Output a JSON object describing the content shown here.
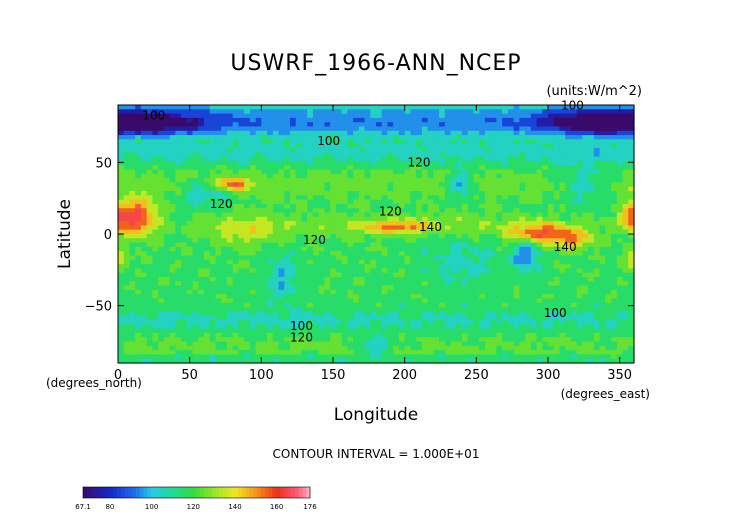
{
  "chart_data": {
    "type": "heatmap",
    "title": "USWRF_1966-ANN_NCEP",
    "units_label": "(units:W/m^2)",
    "xlabel": "Longitude",
    "ylabel": "Latitude",
    "x_unit_label": "(degrees_east)",
    "y_unit_label": "(degrees_north)",
    "xlim": [
      0,
      360
    ],
    "ylim": [
      -90,
      90
    ],
    "x_ticks": [
      "0",
      "50",
      "100",
      "150",
      "200",
      "250",
      "300",
      "350"
    ],
    "x_tick_values": [
      0,
      50,
      100,
      150,
      200,
      250,
      300,
      350
    ],
    "y_ticks": [
      "50",
      "0",
      "−50"
    ],
    "y_tick_values": [
      50,
      0,
      -50
    ],
    "contour_interval_label": "CONTOUR INTERVAL = 1.000E+01",
    "contour_labels": [
      {
        "text": "100",
        "lon": 25,
        "lat": 80
      },
      {
        "text": "100",
        "lon": 147,
        "lat": 62
      },
      {
        "text": "120",
        "lon": 210,
        "lat": 47
      },
      {
        "text": "120",
        "lon": 72,
        "lat": 18
      },
      {
        "text": "120",
        "lon": 190,
        "lat": 13
      },
      {
        "text": "140",
        "lon": 218,
        "lat": 2
      },
      {
        "text": "120",
        "lon": 137,
        "lat": -7
      },
      {
        "text": "140",
        "lon": 312,
        "lat": -12
      },
      {
        "text": "100",
        "lon": 305,
        "lat": -58
      },
      {
        "text": "100",
        "lon": 128,
        "lat": -67
      },
      {
        "text": "120",
        "lon": 128,
        "lat": -75
      },
      {
        "text": "100",
        "lon": 317,
        "lat": 87
      }
    ],
    "colorbar": {
      "min": 67.1,
      "max": 176,
      "tick_labels": [
        "67.1",
        "80",
        "100",
        "120",
        "140",
        "160",
        "176"
      ],
      "tick_values": [
        67.1,
        80,
        100,
        120,
        140,
        160,
        176
      ]
    },
    "colors": {
      "dark_violet": "#3a0a6b",
      "blue": "#1f3fd6",
      "cyan": "#22c8e8",
      "green": "#2fdc3a",
      "yellow": "#f0e81e",
      "orange": "#f08a1e",
      "red": "#e81e1e",
      "pink": "#ffb0c0"
    }
  }
}
